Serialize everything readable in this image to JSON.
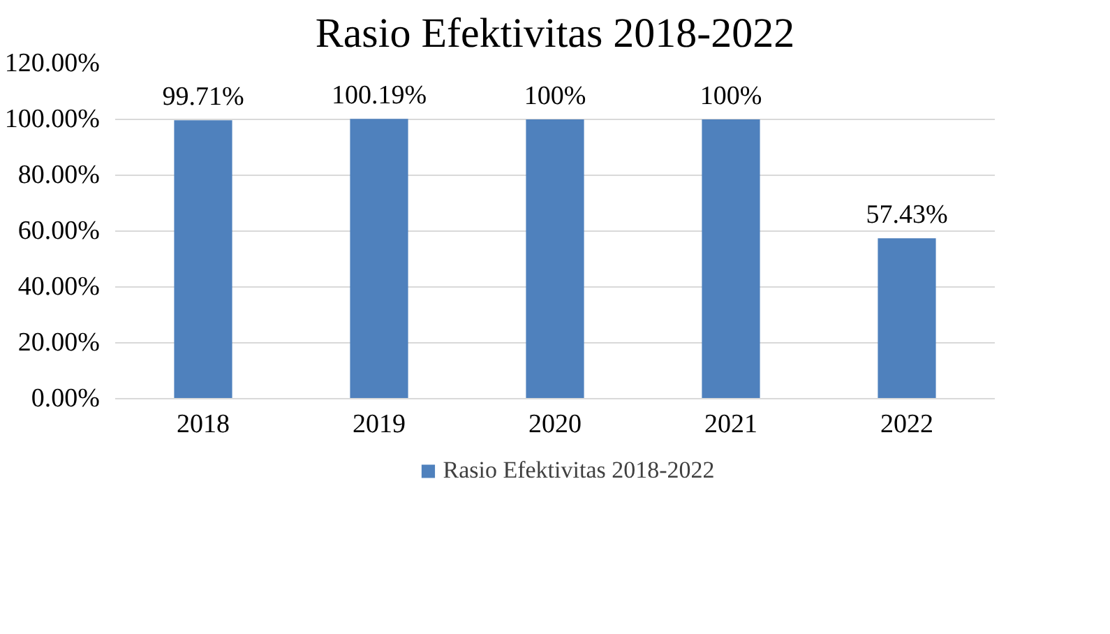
{
  "chart_data": {
    "type": "bar",
    "title": "Rasio Efektivitas 2018-2022",
    "categories": [
      "2018",
      "2019",
      "2020",
      "2021",
      "2022"
    ],
    "series": [
      {
        "name": "Rasio Efektivitas 2018-2022",
        "color": "#4f81bd",
        "values": [
          99.71,
          100.19,
          100,
          100,
          57.43
        ],
        "value_labels": [
          "99.71%",
          "100.19%",
          "100%",
          "100%",
          "57.43%"
        ]
      }
    ],
    "ylim": [
      0,
      120
    ],
    "yticks": [
      {
        "value": 0,
        "label": "0.00%"
      },
      {
        "value": 20,
        "label": "20.00%"
      },
      {
        "value": 40,
        "label": "40.00%"
      },
      {
        "value": 60,
        "label": "60.00%"
      },
      {
        "value": 80,
        "label": "80.00%"
      },
      {
        "value": 100,
        "label": "100.00%"
      },
      {
        "value": 120,
        "label": "120.00%"
      }
    ],
    "grid": "y",
    "legend": "bottom"
  }
}
